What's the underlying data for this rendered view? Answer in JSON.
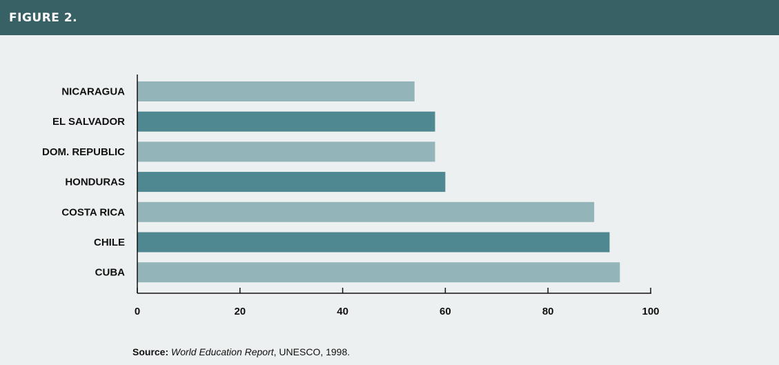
{
  "figure": {
    "label": "FIGURE 2."
  },
  "source": {
    "label": "Source:",
    "title": "World Education Report",
    "rest": ", UNESCO, 1998."
  },
  "colors": {
    "header": "#386166",
    "background": "#edf0f0",
    "bar_light": "#93b4b8",
    "bar_dark": "#4f8890",
    "axis": "#111111"
  },
  "chart_data": {
    "type": "bar",
    "orientation": "horizontal",
    "title": "",
    "xlabel": "",
    "ylabel": "",
    "categories": [
      "NICARAGUA",
      "EL SALVADOR",
      "DOM. REPUBLIC",
      "HONDURAS",
      "COSTA RICA",
      "CHILE",
      "CUBA"
    ],
    "values": [
      54,
      58,
      58,
      60,
      89,
      92,
      94
    ],
    "xlim": [
      0,
      100
    ],
    "xticks": [
      0,
      20,
      40,
      60,
      80,
      100
    ],
    "grid": false,
    "legend": "none"
  }
}
